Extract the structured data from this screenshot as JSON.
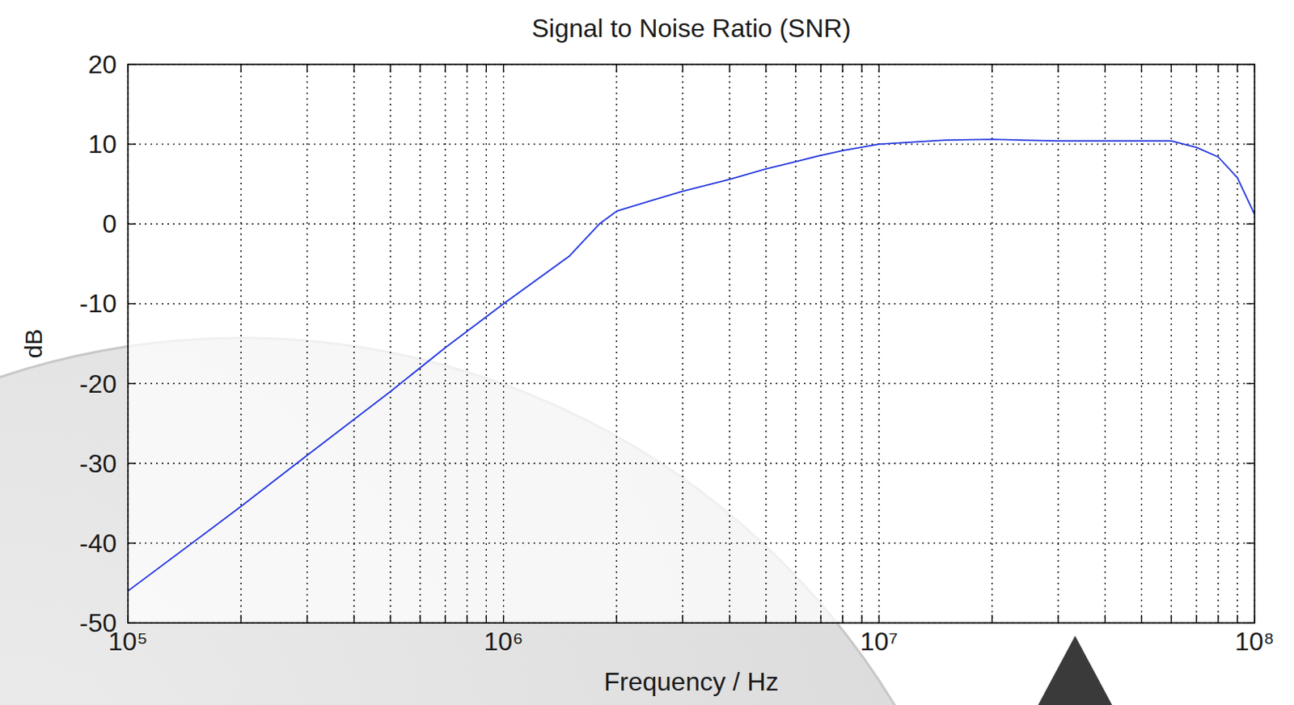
{
  "chart_data": {
    "type": "line",
    "title": "Signal to Noise Ratio (SNR)",
    "x_label": "Frequency / Hz",
    "y_label": "dB",
    "log": "x",
    "grid": true,
    "color": "#2438e0",
    "xlim": [
      100000,
      100000000
    ],
    "ylim": [
      -50,
      20
    ],
    "xticks": [
      {
        "value": 100000,
        "label": "10⁵"
      },
      {
        "value": 200000,
        "label": null
      },
      {
        "value": 300000,
        "label": null
      },
      {
        "value": 400000,
        "label": null
      },
      {
        "value": 500000,
        "label": null
      },
      {
        "value": 600000,
        "label": null
      },
      {
        "value": 700000,
        "label": null
      },
      {
        "value": 800000,
        "label": null
      },
      {
        "value": 900000,
        "label": null
      },
      {
        "value": 1000000,
        "label": "10⁶"
      },
      {
        "value": 2000000,
        "label": null
      },
      {
        "value": 3000000,
        "label": null
      },
      {
        "value": 4000000,
        "label": null
      },
      {
        "value": 5000000,
        "label": null
      },
      {
        "value": 6000000,
        "label": null
      },
      {
        "value": 7000000,
        "label": null
      },
      {
        "value": 8000000,
        "label": null
      },
      {
        "value": 9000000,
        "label": null
      },
      {
        "value": 10000000,
        "label": "10⁷"
      },
      {
        "value": 20000000,
        "label": null
      },
      {
        "value": 30000000,
        "label": null
      },
      {
        "value": 40000000,
        "label": null
      },
      {
        "value": 50000000,
        "label": null
      },
      {
        "value": 60000000,
        "label": null
      },
      {
        "value": 70000000,
        "label": null
      },
      {
        "value": 80000000,
        "label": null
      },
      {
        "value": 90000000,
        "label": null
      },
      {
        "value": 100000000,
        "label": "10⁸"
      }
    ],
    "yticks": [
      -50,
      -40,
      -30,
      -20,
      -10,
      0,
      10,
      20
    ],
    "x": [
      100000,
      200000,
      300000,
      500000,
      700000,
      1000000,
      1500000,
      1800000,
      2000000,
      2500000,
      3000000,
      4000000,
      5000000,
      6000000,
      7000000,
      8000000,
      10000000,
      15000000,
      20000000,
      30000000,
      50000000,
      60000000,
      70000000,
      80000000,
      90000000,
      100000000
    ],
    "values": [
      -46,
      -35.4,
      -29,
      -21,
      -15.5,
      -10,
      -4,
      0,
      1.6,
      3,
      4.1,
      5.6,
      6.9,
      7.8,
      8.6,
      9.2,
      10,
      10.5,
      10.6,
      10.4,
      10.4,
      10.4,
      9.6,
      8.4,
      5.8,
      1.2
    ]
  }
}
